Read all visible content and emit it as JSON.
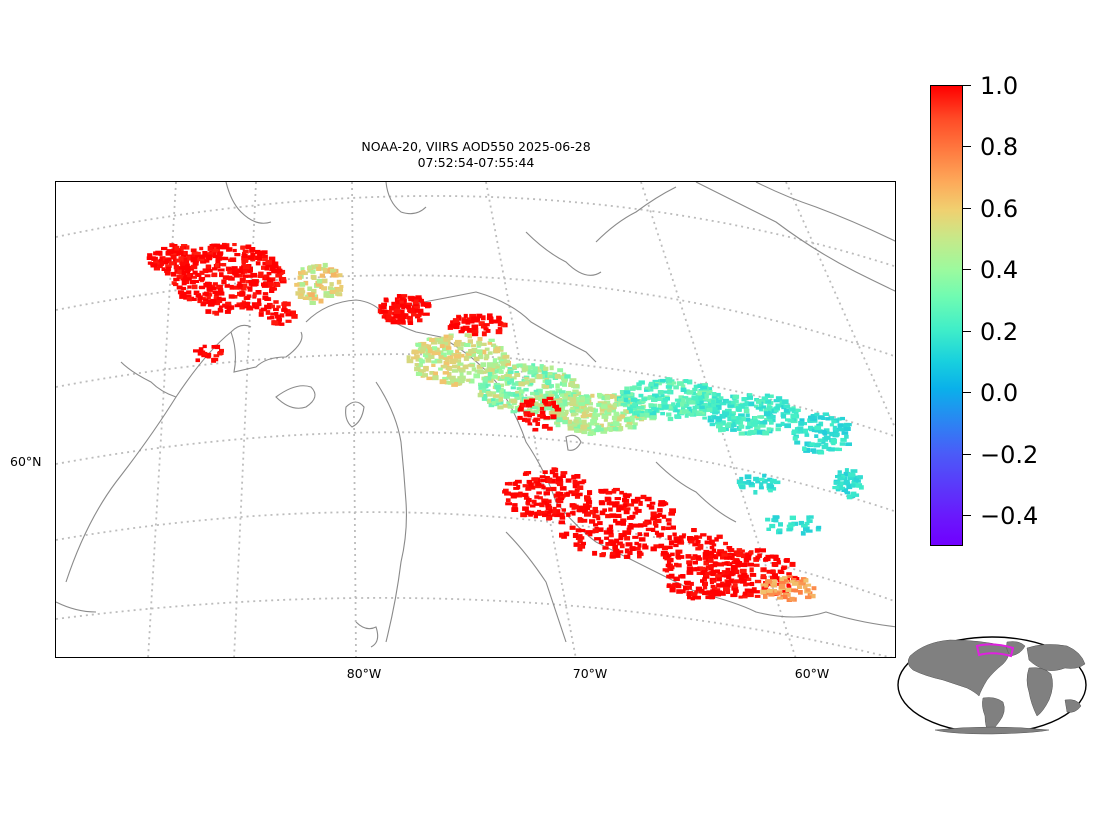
{
  "title": {
    "line1": "NOAA-20, VIIRS AOD550 2025-06-28",
    "line2": "07:52:54-07:55:44"
  },
  "map": {
    "projection": "lambert-conformal",
    "gridlines": "dotted",
    "lon_labels": [
      "80°W",
      "70°W",
      "60°W"
    ],
    "lat_labels": [
      "60°N"
    ],
    "coastline_color": "#888888",
    "overlay_variable": "AOD550"
  },
  "colorbar": {
    "colormap": "rainbow",
    "range": [
      -0.5,
      1.0
    ],
    "ticks": [
      "1.0",
      "0.8",
      "0.6",
      "0.4",
      "0.2",
      "0.0",
      "−0.2",
      "−0.4"
    ]
  },
  "inset": {
    "type": "global-locator",
    "highlight_color": "#e020e0",
    "land_color": "#808080"
  }
}
